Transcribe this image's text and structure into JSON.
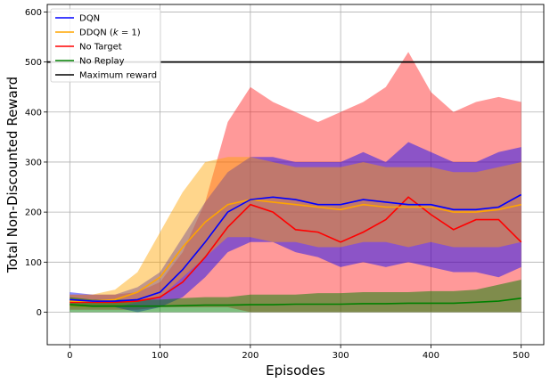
{
  "chart_data": {
    "type": "line",
    "xlabel": "Episodes",
    "ylabel": "Total Non-Discounted Reward",
    "xlim": [
      -25,
      525
    ],
    "ylim": [
      -65,
      615
    ],
    "x_ticks": [
      0,
      100,
      200,
      300,
      400,
      500
    ],
    "y_ticks": [
      0,
      100,
      200,
      300,
      400,
      500,
      600
    ],
    "grid": true,
    "legend_placement": "top-left",
    "reference_line": {
      "name": "Maximum reward",
      "y": 500,
      "color": "#000000"
    },
    "series": [
      {
        "name": "DQN",
        "color": "#0000ff",
        "x": [
          0,
          25,
          50,
          75,
          100,
          125,
          150,
          175,
          200,
          225,
          250,
          275,
          300,
          325,
          350,
          375,
          400,
          425,
          450,
          475,
          500
        ],
        "mean": [
          25,
          22,
          22,
          25,
          40,
          85,
          140,
          200,
          225,
          230,
          225,
          215,
          215,
          225,
          220,
          215,
          215,
          205,
          205,
          210,
          235
        ],
        "lower": [
          15,
          10,
          10,
          0,
          10,
          30,
          70,
          120,
          140,
          140,
          120,
          110,
          90,
          100,
          90,
          100,
          90,
          80,
          80,
          70,
          90
        ],
        "upper": [
          40,
          35,
          35,
          50,
          80,
          150,
          220,
          280,
          310,
          310,
          300,
          300,
          300,
          320,
          300,
          340,
          320,
          300,
          300,
          320,
          330
        ]
      },
      {
        "name": "DDQN ($k=1$)",
        "color": "#ffa500",
        "x": [
          0,
          25,
          50,
          75,
          100,
          125,
          150,
          175,
          200,
          225,
          250,
          275,
          300,
          325,
          350,
          375,
          400,
          425,
          450,
          475,
          500
        ],
        "mean": [
          22,
          22,
          25,
          40,
          70,
          130,
          180,
          215,
          225,
          220,
          215,
          210,
          205,
          215,
          210,
          210,
          210,
          200,
          200,
          205,
          215
        ],
        "lower": [
          10,
          10,
          10,
          20,
          30,
          70,
          110,
          150,
          150,
          140,
          140,
          130,
          130,
          140,
          140,
          130,
          140,
          130,
          130,
          130,
          140
        ],
        "upper": [
          35,
          35,
          45,
          80,
          160,
          240,
          300,
          310,
          310,
          300,
          290,
          290,
          290,
          300,
          290,
          290,
          290,
          280,
          280,
          290,
          300
        ]
      },
      {
        "name": "No Target",
        "color": "#ff0000",
        "x": [
          0,
          25,
          50,
          75,
          100,
          125,
          150,
          175,
          200,
          225,
          250,
          275,
          300,
          325,
          350,
          375,
          400,
          425,
          450,
          475,
          500
        ],
        "mean": [
          20,
          20,
          20,
          22,
          30,
          60,
          110,
          170,
          215,
          200,
          165,
          160,
          140,
          160,
          185,
          230,
          195,
          165,
          185,
          185,
          140
        ],
        "lower": [
          5,
          5,
          5,
          5,
          10,
          10,
          10,
          10,
          0,
          0,
          0,
          0,
          0,
          0,
          0,
          0,
          0,
          0,
          0,
          0,
          0
        ],
        "upper": [
          35,
          35,
          35,
          40,
          60,
          120,
          220,
          380,
          450,
          420,
          400,
          380,
          400,
          420,
          450,
          520,
          440,
          400,
          420,
          430,
          420
        ]
      },
      {
        "name": "No Replay",
        "color": "#008000",
        "x": [
          0,
          25,
          50,
          75,
          100,
          125,
          150,
          175,
          200,
          225,
          250,
          275,
          300,
          325,
          350,
          375,
          400,
          425,
          450,
          475,
          500
        ],
        "mean": [
          15,
          12,
          12,
          12,
          12,
          13,
          14,
          14,
          15,
          15,
          16,
          16,
          16,
          17,
          17,
          18,
          18,
          18,
          20,
          22,
          28
        ],
        "lower": [
          0,
          0,
          0,
          0,
          0,
          0,
          0,
          0,
          0,
          0,
          0,
          0,
          0,
          0,
          0,
          0,
          0,
          0,
          0,
          0,
          0
        ],
        "upper": [
          30,
          25,
          25,
          25,
          25,
          28,
          30,
          30,
          35,
          35,
          35,
          38,
          38,
          40,
          40,
          40,
          42,
          42,
          45,
          55,
          65
        ]
      }
    ]
  }
}
